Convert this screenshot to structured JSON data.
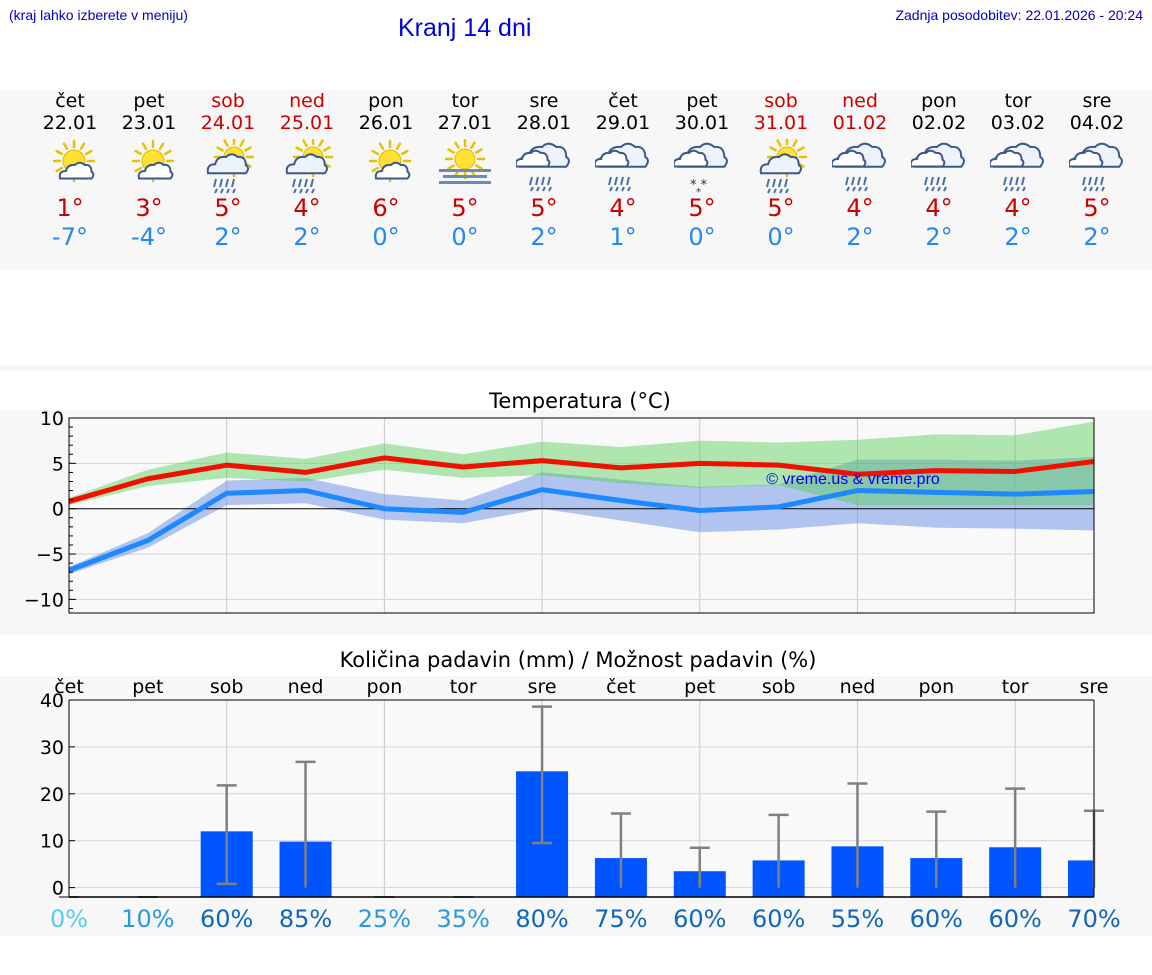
{
  "header": {
    "note": "(kraj lahko izberete v meniju)",
    "title": "Kranj 14 dni",
    "last_update": "Zadnja posodobitev: 22.01.2026 - 20:24"
  },
  "colors": {
    "weekday": "#000000",
    "weekend": "#cc0000",
    "t_max": "#cc0000",
    "t_min": "#2288ee",
    "precip_bar": "#0055ff"
  },
  "days": [
    {
      "name": "čet",
      "date": "22.01",
      "weekend": false,
      "icon": "sun-cloud-icon",
      "tmax": "1°",
      "tmin": "-7°"
    },
    {
      "name": "pet",
      "date": "23.01",
      "weekend": false,
      "icon": "sun-cloud-icon",
      "tmax": "3°",
      "tmin": "-4°"
    },
    {
      "name": "sob",
      "date": "24.01",
      "weekend": true,
      "icon": "sun-cloud-rain-icon",
      "tmax": "5°",
      "tmin": "2°"
    },
    {
      "name": "ned",
      "date": "25.01",
      "weekend": true,
      "icon": "sun-cloud-rain-icon",
      "tmax": "4°",
      "tmin": "2°"
    },
    {
      "name": "pon",
      "date": "26.01",
      "weekend": false,
      "icon": "sun-cloud-icon",
      "tmax": "6°",
      "tmin": "0°"
    },
    {
      "name": "tor",
      "date": "27.01",
      "weekend": false,
      "icon": "sun-fog-icon",
      "tmax": "5°",
      "tmin": "0°"
    },
    {
      "name": "sre",
      "date": "28.01",
      "weekend": false,
      "icon": "cloud-rain-icon",
      "tmax": "5°",
      "tmin": "2°"
    },
    {
      "name": "čet",
      "date": "29.01",
      "weekend": false,
      "icon": "cloud-rain-icon",
      "tmax": "4°",
      "tmin": "1°"
    },
    {
      "name": "pet",
      "date": "30.01",
      "weekend": false,
      "icon": "cloud-snow-icon",
      "tmax": "5°",
      "tmin": "0°"
    },
    {
      "name": "sob",
      "date": "31.01",
      "weekend": true,
      "icon": "sun-cloud-rain-icon",
      "tmax": "5°",
      "tmin": "0°"
    },
    {
      "name": "ned",
      "date": "01.02",
      "weekend": true,
      "icon": "cloud-rain-icon",
      "tmax": "4°",
      "tmin": "2°"
    },
    {
      "name": "pon",
      "date": "02.02",
      "weekend": false,
      "icon": "cloud-rain-icon",
      "tmax": "4°",
      "tmin": "2°"
    },
    {
      "name": "tor",
      "date": "03.02",
      "weekend": false,
      "icon": "cloud-rain-icon",
      "tmax": "4°",
      "tmin": "2°"
    },
    {
      "name": "sre",
      "date": "04.02",
      "weekend": false,
      "icon": "cloud-rain-icon",
      "tmax": "5°",
      "tmin": "2°"
    }
  ],
  "chart_data": [
    {
      "type": "line",
      "title": "Temperatura (°C)",
      "xlabel": "",
      "ylabel": "",
      "ylim": [
        -11.5,
        10
      ],
      "yticks": [
        10,
        5,
        0,
        -5,
        -10
      ],
      "ytick_labels": [
        "10",
        "5",
        "0",
        "−5",
        "−10"
      ],
      "grid": true,
      "watermark": "© vreme.us & vreme.pro",
      "x": [
        0,
        1,
        2,
        3,
        4,
        5,
        6,
        7,
        8,
        9,
        10,
        11,
        12,
        13
      ],
      "series": [
        {
          "name": "max",
          "values": [
            0.8,
            3.3,
            4.8,
            4.0,
            5.6,
            4.6,
            5.3,
            4.5,
            5.0,
            4.8,
            3.8,
            4.2,
            4.1,
            5.2
          ],
          "band_low": [
            0.4,
            2.5,
            3.4,
            3.0,
            4.3,
            3.4,
            3.7,
            2.8,
            2.3,
            2.6,
            0.4,
            0.4,
            0.4,
            0.4
          ],
          "band_high": [
            1.2,
            4.3,
            6.2,
            5.5,
            7.2,
            6.0,
            7.4,
            6.8,
            7.5,
            7.3,
            7.6,
            8.2,
            8.1,
            9.6
          ]
        },
        {
          "name": "min",
          "values": [
            -6.8,
            -3.5,
            1.7,
            2.0,
            0.0,
            -0.4,
            2.1,
            0.9,
            -0.2,
            0.2,
            2.0,
            1.8,
            1.6,
            1.9
          ],
          "band_low": [
            -7.2,
            -4.3,
            0.4,
            0.6,
            -1.2,
            -1.6,
            0.0,
            -1.3,
            -2.6,
            -2.3,
            -1.6,
            -2.1,
            -2.2,
            -2.4
          ],
          "band_high": [
            -6.4,
            -2.7,
            3.1,
            3.4,
            1.6,
            0.9,
            4.0,
            3.2,
            2.4,
            2.7,
            5.4,
            5.4,
            5.3,
            5.7
          ]
        }
      ]
    },
    {
      "type": "bar",
      "title": "Količina padavin (mm) / Možnost padavin (%)",
      "categories": [
        "čet",
        "pet",
        "sob",
        "ned",
        "pon",
        "tor",
        "sre",
        "čet",
        "pet",
        "sob",
        "ned",
        "pon",
        "tor",
        "sre"
      ],
      "ylim": [
        -2,
        40
      ],
      "yticks": [
        40,
        30,
        20,
        10,
        0
      ],
      "grid": true,
      "values": [
        0,
        0,
        12.0,
        9.8,
        0,
        0,
        24.8,
        6.3,
        3.5,
        5.8,
        8.8,
        6.3,
        8.6,
        5.8
      ],
      "error_low": [
        0,
        0,
        0.8,
        0,
        0,
        0,
        9.5,
        0,
        0,
        0,
        0,
        0,
        0,
        0
      ],
      "error_high": [
        0,
        0,
        21.8,
        26.8,
        0,
        0,
        38.6,
        15.8,
        8.5,
        15.5,
        22.2,
        16.2,
        21.1,
        16.4
      ],
      "probability": [
        "0%",
        "10%",
        "60%",
        "85%",
        "25%",
        "35%",
        "80%",
        "75%",
        "60%",
        "60%",
        "55%",
        "60%",
        "60%",
        "70%"
      ],
      "probability_colors": [
        "#55ccee",
        "#2a99dd",
        "#1166bb",
        "#1166bb",
        "#2a99dd",
        "#2a99dd",
        "#1166bb",
        "#1166bb",
        "#1166bb",
        "#1166bb",
        "#1166bb",
        "#1166bb",
        "#1166bb",
        "#1166bb"
      ]
    }
  ]
}
